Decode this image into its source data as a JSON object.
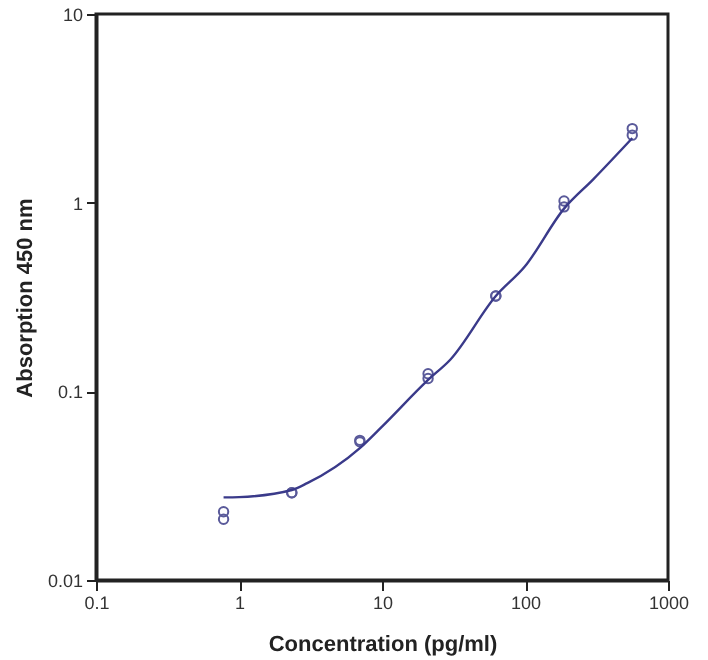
{
  "chart_data": {
    "type": "scatter",
    "xlabel": "Concentration (pg/ml)",
    "ylabel": "Absorption 450 nm",
    "log": "xy",
    "grid": false,
    "marker": "circle",
    "xlim": [
      0.1,
      1000
    ],
    "xticks": [
      0.1,
      1,
      10,
      100,
      1000
    ],
    "ylim": [
      0.01,
      10
    ],
    "yticks": [
      0.01,
      0.1,
      1,
      10
    ],
    "series": [
      {
        "color": "#5a5a9a",
        "x": [
          0.78,
          0.78,
          2.34,
          2.34,
          7,
          7,
          21,
          21,
          62.5,
          62.5,
          187.5,
          187.5,
          562.5,
          562.5
        ],
        "values": [
          0.023,
          0.021,
          0.029,
          0.029,
          0.055,
          0.054,
          0.124,
          0.117,
          0.32,
          0.32,
          1.02,
          0.95,
          2.47,
          2.28
        ]
      },
      {
        "type": "line",
        "marker": "none",
        "color": "#3a3a8a",
        "x": [
          0.78,
          1,
          2.34,
          3,
          7,
          10,
          21,
          30,
          62.5,
          100,
          187.5,
          300,
          562.5
        ],
        "values": [
          0.0274,
          0.0275,
          0.03,
          0.0326,
          0.05,
          0.065,
          0.115,
          0.147,
          0.32,
          0.46,
          0.93,
          1.33,
          2.2
        ]
      }
    ]
  }
}
